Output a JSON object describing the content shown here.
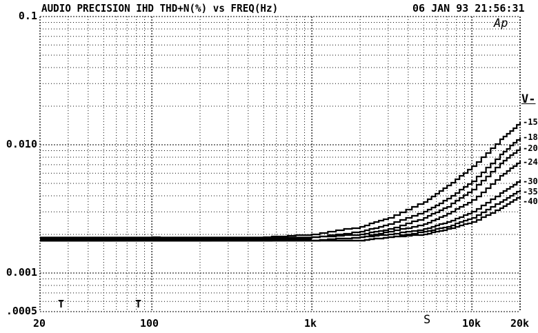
{
  "header": {
    "title": "AUDIO PRECISION IHD THD+N(%) vs FREQ(Hz)",
    "timestamp": "06 JAN 93 21:56:31",
    "logo": "Ap"
  },
  "chart_data": {
    "type": "line",
    "title": "AUDIO PRECISION IHD THD+N(%) vs FREQ(Hz)",
    "xlabel": "FREQ(Hz)",
    "ylabel": "THD+N(%)",
    "xscale": "log",
    "yscale": "log",
    "xlim": [
      20,
      20000
    ],
    "ylim": [
      0.0005,
      0.1
    ],
    "grid": true,
    "x_tick_labels": [
      "20",
      "100",
      "1k",
      "10k",
      "20k"
    ],
    "y_tick_labels": [
      "0.1",
      "0.010",
      "0.001",
      ".0005"
    ],
    "legend_title": "V-",
    "legend_position": "right",
    "annotations": [
      "T",
      "T",
      "S"
    ],
    "x": [
      20,
      50,
      100,
      200,
      500,
      1000,
      2000,
      3000,
      5000,
      7000,
      10000,
      15000,
      20000
    ],
    "series": [
      {
        "name": "-15",
        "values": [
          0.0018,
          0.0018,
          0.0019,
          0.0018,
          0.0019,
          0.002,
          0.0023,
          0.0027,
          0.0036,
          0.0048,
          0.0068,
          0.011,
          0.015
        ]
      },
      {
        "name": "-18",
        "values": [
          0.0018,
          0.0018,
          0.0018,
          0.0018,
          0.0018,
          0.0019,
          0.0021,
          0.0024,
          0.003,
          0.0038,
          0.0052,
          0.0084,
          0.0115
        ]
      },
      {
        "name": "-20",
        "values": [
          0.0018,
          0.0018,
          0.0018,
          0.0018,
          0.0018,
          0.0019,
          0.002,
          0.0022,
          0.0027,
          0.0033,
          0.0045,
          0.0072,
          0.0095
        ]
      },
      {
        "name": "-24",
        "values": [
          0.0018,
          0.0018,
          0.0018,
          0.0018,
          0.0018,
          0.0018,
          0.0019,
          0.0021,
          0.0024,
          0.0029,
          0.0037,
          0.0057,
          0.0075
        ]
      },
      {
        "name": "-30",
        "values": [
          0.0018,
          0.0018,
          0.0018,
          0.0018,
          0.0018,
          0.0018,
          0.0019,
          0.002,
          0.0022,
          0.0025,
          0.003,
          0.0042,
          0.0053
        ]
      },
      {
        "name": "-35",
        "values": [
          0.0018,
          0.0018,
          0.0018,
          0.0018,
          0.0018,
          0.0018,
          0.0018,
          0.0019,
          0.0021,
          0.0023,
          0.0027,
          0.0036,
          0.0045
        ]
      },
      {
        "name": "-40",
        "values": [
          0.0018,
          0.0018,
          0.0018,
          0.0018,
          0.0018,
          0.0018,
          0.0018,
          0.0019,
          0.002,
          0.0022,
          0.0025,
          0.0032,
          0.004
        ]
      }
    ]
  },
  "axes": {
    "y_ticks": [
      {
        "label": "0.1",
        "value": 0.1
      },
      {
        "label": "0.010",
        "value": 0.01
      },
      {
        "label": "0.001",
        "value": 0.001
      },
      {
        "label": ".0005",
        "value": 0.0005
      }
    ],
    "x_ticks": [
      {
        "label": "20",
        "value": 20
      },
      {
        "label": "100",
        "value": 100
      },
      {
        "label": "1k",
        "value": 1000
      },
      {
        "label": "10k",
        "value": 10000
      },
      {
        "label": "20k",
        "value": 20000
      }
    ]
  },
  "legend": {
    "title": "V-",
    "items": [
      "-15",
      "-18",
      "-20",
      "-24",
      "-30",
      "-35",
      "-40"
    ]
  },
  "markers": {
    "t1": "T",
    "t2": "T",
    "s": "S"
  }
}
